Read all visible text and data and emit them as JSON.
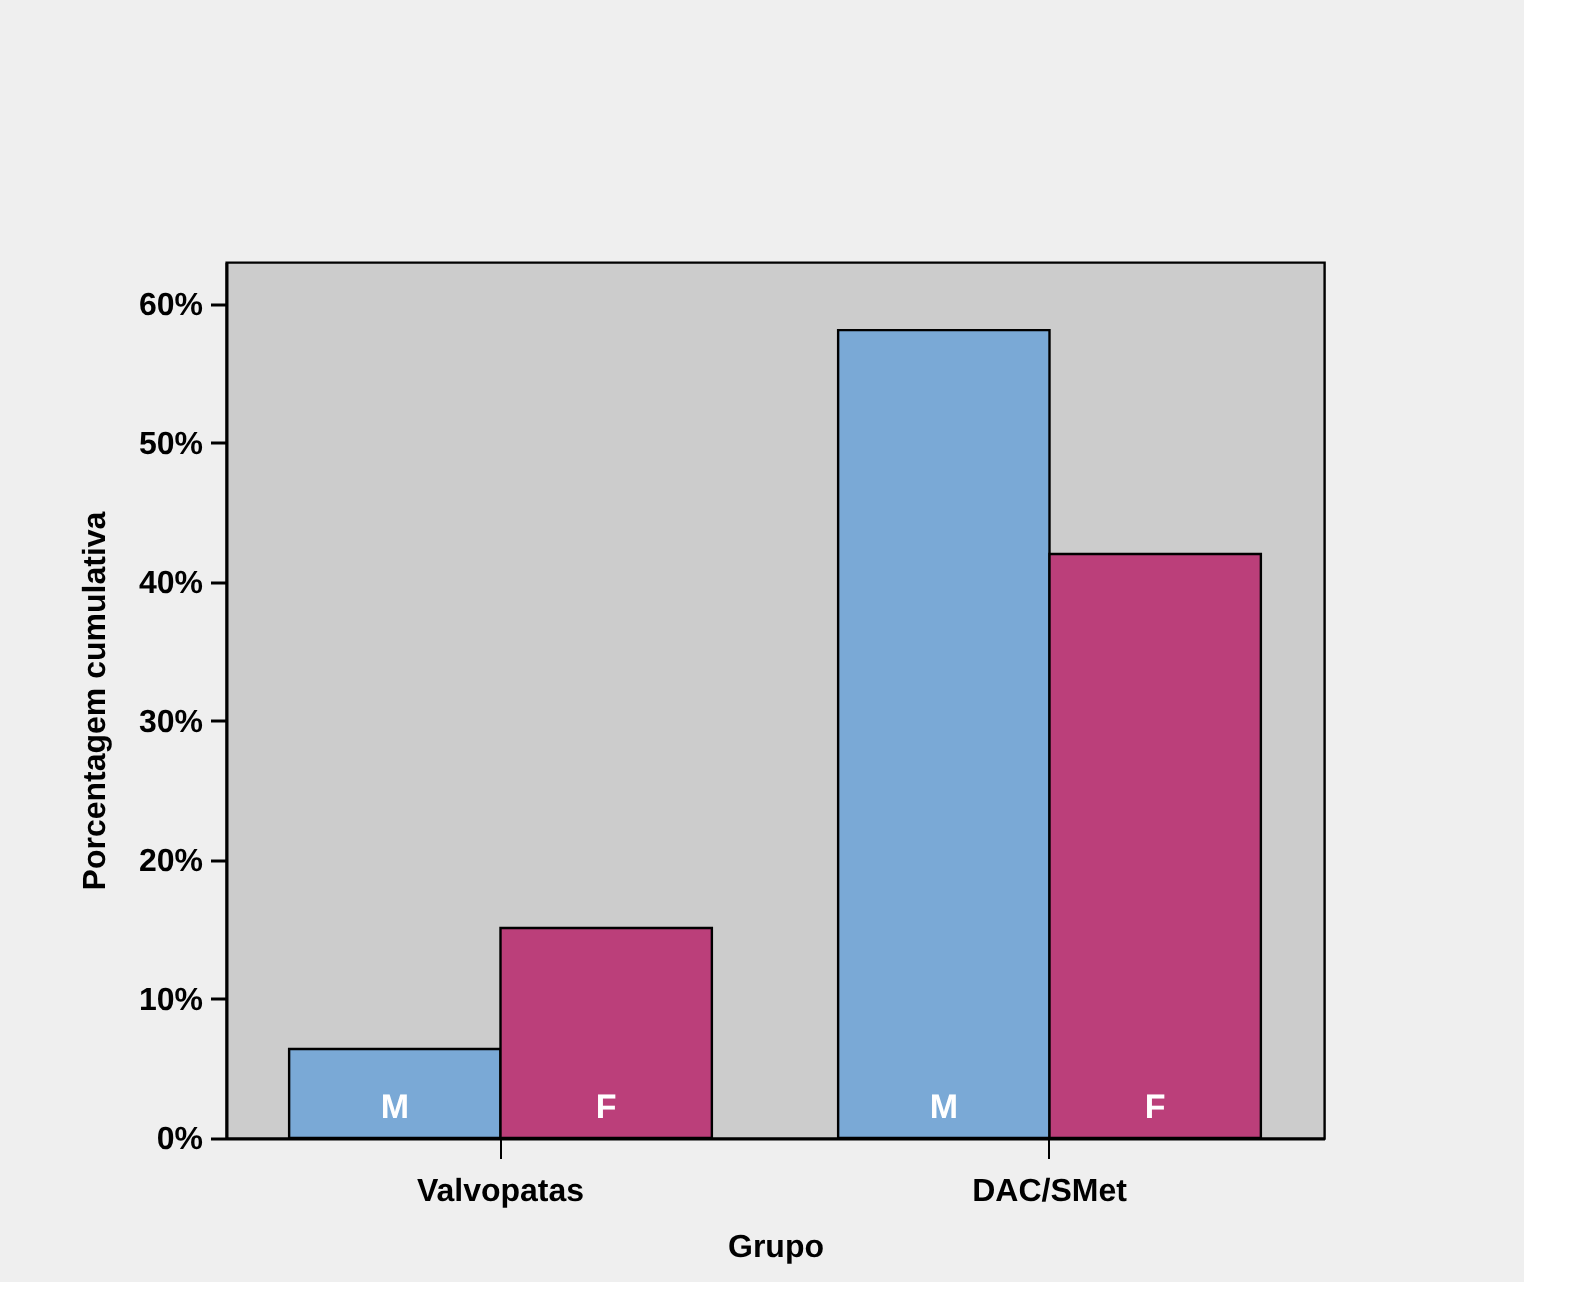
{
  "chart_data": {
    "type": "bar",
    "xlabel": "Grupo",
    "ylabel": "Porcentagem cumulativa",
    "categories": [
      "Valvopatas",
      "DAC/SMet"
    ],
    "series": [
      {
        "name": "M",
        "color": "#7aa9d6",
        "values": [
          6.4,
          58.1
        ]
      },
      {
        "name": "F",
        "color": "#bb3f7a",
        "values": [
          15.1,
          42
        ]
      }
    ],
    "ylim": [
      0,
      63
    ],
    "yticks": [
      {
        "value": 0,
        "label": "0%"
      },
      {
        "value": 10,
        "label": "10%"
      },
      {
        "value": 20,
        "label": "20%"
      },
      {
        "value": 30,
        "label": "30%"
      },
      {
        "value": 40,
        "label": "40%"
      },
      {
        "value": 50,
        "label": "50%"
      },
      {
        "value": 60,
        "label": "60%"
      }
    ],
    "grid": false,
    "legend": false
  }
}
